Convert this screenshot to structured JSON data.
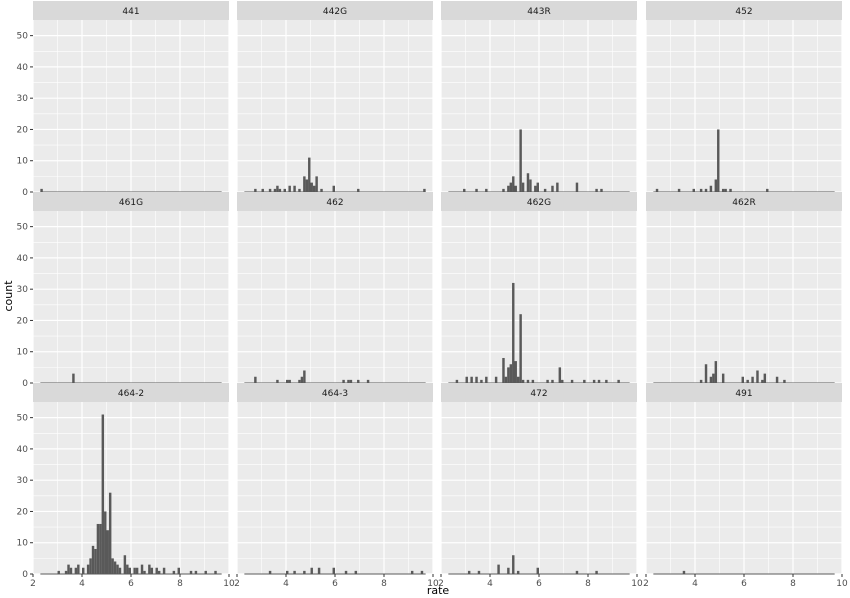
{
  "chart_data": {
    "type": "histogram-facets",
    "xlabel": "rate",
    "ylabel": "count",
    "xlim": [
      2,
      10
    ],
    "ylim": [
      0,
      55
    ],
    "x_ticks": [
      2,
      4,
      6,
      8,
      10
    ],
    "y_ticks": [
      0,
      10,
      20,
      30,
      40,
      50
    ],
    "bin_width": 0.1,
    "grid": true,
    "colors": {
      "bar": "#595959",
      "panel_bg": "#ebebeb",
      "strip_bg": "#d9d9d9",
      "grid": "#ffffff"
    },
    "panels": [
      {
        "label": "441",
        "bins": [
          {
            "x": 2.35,
            "y": 1
          }
        ]
      },
      {
        "label": "442G",
        "bins": [
          {
            "x": 2.75,
            "y": 1
          },
          {
            "x": 3.05,
            "y": 1
          },
          {
            "x": 3.35,
            "y": 1
          },
          {
            "x": 3.55,
            "y": 1
          },
          {
            "x": 3.65,
            "y": 2
          },
          {
            "x": 3.75,
            "y": 1
          },
          {
            "x": 3.95,
            "y": 1
          },
          {
            "x": 4.15,
            "y": 2
          },
          {
            "x": 4.35,
            "y": 2
          },
          {
            "x": 4.55,
            "y": 1
          },
          {
            "x": 4.75,
            "y": 5
          },
          {
            "x": 4.85,
            "y": 4
          },
          {
            "x": 4.95,
            "y": 11
          },
          {
            "x": 5.05,
            "y": 3
          },
          {
            "x": 5.15,
            "y": 2
          },
          {
            "x": 5.25,
            "y": 5
          },
          {
            "x": 5.45,
            "y": 1
          },
          {
            "x": 5.95,
            "y": 2
          },
          {
            "x": 6.95,
            "y": 1
          },
          {
            "x": 9.65,
            "y": 1
          }
        ]
      },
      {
        "label": "443R",
        "bins": [
          {
            "x": 2.95,
            "y": 1
          },
          {
            "x": 3.45,
            "y": 1
          },
          {
            "x": 3.85,
            "y": 1
          },
          {
            "x": 4.55,
            "y": 1
          },
          {
            "x": 4.75,
            "y": 2
          },
          {
            "x": 4.85,
            "y": 3
          },
          {
            "x": 4.95,
            "y": 5
          },
          {
            "x": 5.05,
            "y": 2
          },
          {
            "x": 5.25,
            "y": 20
          },
          {
            "x": 5.35,
            "y": 3
          },
          {
            "x": 5.55,
            "y": 6
          },
          {
            "x": 5.65,
            "y": 4
          },
          {
            "x": 5.85,
            "y": 2
          },
          {
            "x": 5.95,
            "y": 3
          },
          {
            "x": 6.25,
            "y": 1
          },
          {
            "x": 6.55,
            "y": 2
          },
          {
            "x": 6.75,
            "y": 3
          },
          {
            "x": 7.55,
            "y": 3
          },
          {
            "x": 8.35,
            "y": 1
          },
          {
            "x": 8.55,
            "y": 1
          }
        ]
      },
      {
        "label": "452",
        "bins": [
          {
            "x": 2.45,
            "y": 1
          },
          {
            "x": 3.35,
            "y": 1
          },
          {
            "x": 3.95,
            "y": 1
          },
          {
            "x": 4.25,
            "y": 1
          },
          {
            "x": 4.45,
            "y": 1
          },
          {
            "x": 4.65,
            "y": 2
          },
          {
            "x": 4.85,
            "y": 4
          },
          {
            "x": 4.95,
            "y": 20
          },
          {
            "x": 5.15,
            "y": 1
          },
          {
            "x": 5.25,
            "y": 1
          },
          {
            "x": 5.45,
            "y": 1
          },
          {
            "x": 6.95,
            "y": 1
          }
        ]
      },
      {
        "label": "461G",
        "bins": [
          {
            "x": 3.65,
            "y": 3
          }
        ]
      },
      {
        "label": "462",
        "bins": [
          {
            "x": 2.75,
            "y": 2
          },
          {
            "x": 3.65,
            "y": 1
          },
          {
            "x": 4.05,
            "y": 1
          },
          {
            "x": 4.15,
            "y": 1
          },
          {
            "x": 4.55,
            "y": 1
          },
          {
            "x": 4.65,
            "y": 2
          },
          {
            "x": 4.75,
            "y": 4
          },
          {
            "x": 6.35,
            "y": 1
          },
          {
            "x": 6.55,
            "y": 1
          },
          {
            "x": 6.65,
            "y": 1
          },
          {
            "x": 6.95,
            "y": 1
          },
          {
            "x": 7.35,
            "y": 1
          }
        ]
      },
      {
        "label": "462G",
        "bins": [
          {
            "x": 2.65,
            "y": 1
          },
          {
            "x": 3.05,
            "y": 2
          },
          {
            "x": 3.25,
            "y": 2
          },
          {
            "x": 3.45,
            "y": 2
          },
          {
            "x": 3.65,
            "y": 1
          },
          {
            "x": 3.85,
            "y": 2
          },
          {
            "x": 4.25,
            "y": 2
          },
          {
            "x": 4.55,
            "y": 8
          },
          {
            "x": 4.65,
            "y": 2
          },
          {
            "x": 4.75,
            "y": 5
          },
          {
            "x": 4.85,
            "y": 6
          },
          {
            "x": 4.95,
            "y": 32
          },
          {
            "x": 5.05,
            "y": 7
          },
          {
            "x": 5.15,
            "y": 2
          },
          {
            "x": 5.25,
            "y": 22
          },
          {
            "x": 5.35,
            "y": 1
          },
          {
            "x": 5.55,
            "y": 1
          },
          {
            "x": 5.75,
            "y": 1
          },
          {
            "x": 6.35,
            "y": 1
          },
          {
            "x": 6.55,
            "y": 1
          },
          {
            "x": 6.85,
            "y": 5
          },
          {
            "x": 6.95,
            "y": 1
          },
          {
            "x": 7.35,
            "y": 1
          },
          {
            "x": 7.85,
            "y": 1
          },
          {
            "x": 8.25,
            "y": 1
          },
          {
            "x": 8.45,
            "y": 1
          },
          {
            "x": 8.75,
            "y": 1
          },
          {
            "x": 9.25,
            "y": 1
          }
        ]
      },
      {
        "label": "462R",
        "bins": [
          {
            "x": 4.25,
            "y": 1
          },
          {
            "x": 4.45,
            "y": 6
          },
          {
            "x": 4.65,
            "y": 2
          },
          {
            "x": 4.75,
            "y": 3
          },
          {
            "x": 4.85,
            "y": 7
          },
          {
            "x": 5.15,
            "y": 3
          },
          {
            "x": 5.95,
            "y": 2
          },
          {
            "x": 6.15,
            "y": 1
          },
          {
            "x": 6.35,
            "y": 2
          },
          {
            "x": 6.55,
            "y": 4
          },
          {
            "x": 6.75,
            "y": 1
          },
          {
            "x": 6.85,
            "y": 3
          },
          {
            "x": 7.35,
            "y": 2
          },
          {
            "x": 7.65,
            "y": 1
          }
        ]
      },
      {
        "label": "464-2",
        "bins": [
          {
            "x": 3.05,
            "y": 1
          },
          {
            "x": 3.35,
            "y": 1
          },
          {
            "x": 3.45,
            "y": 3
          },
          {
            "x": 3.55,
            "y": 2
          },
          {
            "x": 3.75,
            "y": 2
          },
          {
            "x": 3.85,
            "y": 3
          },
          {
            "x": 4.05,
            "y": 2
          },
          {
            "x": 4.25,
            "y": 3
          },
          {
            "x": 4.35,
            "y": 5
          },
          {
            "x": 4.45,
            "y": 9
          },
          {
            "x": 4.55,
            "y": 8
          },
          {
            "x": 4.65,
            "y": 16
          },
          {
            "x": 4.75,
            "y": 16
          },
          {
            "x": 4.85,
            "y": 51
          },
          {
            "x": 4.95,
            "y": 20
          },
          {
            "x": 5.05,
            "y": 14
          },
          {
            "x": 5.15,
            "y": 26
          },
          {
            "x": 5.25,
            "y": 5
          },
          {
            "x": 5.35,
            "y": 4
          },
          {
            "x": 5.45,
            "y": 3
          },
          {
            "x": 5.55,
            "y": 2
          },
          {
            "x": 5.75,
            "y": 6
          },
          {
            "x": 5.85,
            "y": 3
          },
          {
            "x": 5.95,
            "y": 2
          },
          {
            "x": 6.15,
            "y": 2
          },
          {
            "x": 6.25,
            "y": 2
          },
          {
            "x": 6.45,
            "y": 3
          },
          {
            "x": 6.55,
            "y": 1
          },
          {
            "x": 6.75,
            "y": 3
          },
          {
            "x": 6.85,
            "y": 2
          },
          {
            "x": 7.05,
            "y": 2
          },
          {
            "x": 7.15,
            "y": 1
          },
          {
            "x": 7.35,
            "y": 2
          },
          {
            "x": 7.75,
            "y": 1
          },
          {
            "x": 7.95,
            "y": 2
          },
          {
            "x": 8.45,
            "y": 1
          },
          {
            "x": 8.65,
            "y": 1
          },
          {
            "x": 9.05,
            "y": 1
          },
          {
            "x": 9.45,
            "y": 1
          }
        ]
      },
      {
        "label": "464-3",
        "bins": [
          {
            "x": 3.35,
            "y": 1
          },
          {
            "x": 4.05,
            "y": 1
          },
          {
            "x": 4.35,
            "y": 1
          },
          {
            "x": 4.75,
            "y": 1
          },
          {
            "x": 5.05,
            "y": 2
          },
          {
            "x": 5.35,
            "y": 2
          },
          {
            "x": 5.95,
            "y": 2
          },
          {
            "x": 6.45,
            "y": 1
          },
          {
            "x": 6.85,
            "y": 1
          },
          {
            "x": 9.15,
            "y": 1
          },
          {
            "x": 9.55,
            "y": 1
          }
        ]
      },
      {
        "label": "472",
        "bins": [
          {
            "x": 3.15,
            "y": 1
          },
          {
            "x": 3.55,
            "y": 1
          },
          {
            "x": 4.35,
            "y": 3
          },
          {
            "x": 4.75,
            "y": 2
          },
          {
            "x": 4.95,
            "y": 6
          },
          {
            "x": 5.15,
            "y": 1
          },
          {
            "x": 5.95,
            "y": 2
          },
          {
            "x": 7.55,
            "y": 1
          },
          {
            "x": 8.35,
            "y": 1
          }
        ]
      },
      {
        "label": "491",
        "bins": [
          {
            "x": 3.55,
            "y": 1
          }
        ]
      }
    ]
  }
}
